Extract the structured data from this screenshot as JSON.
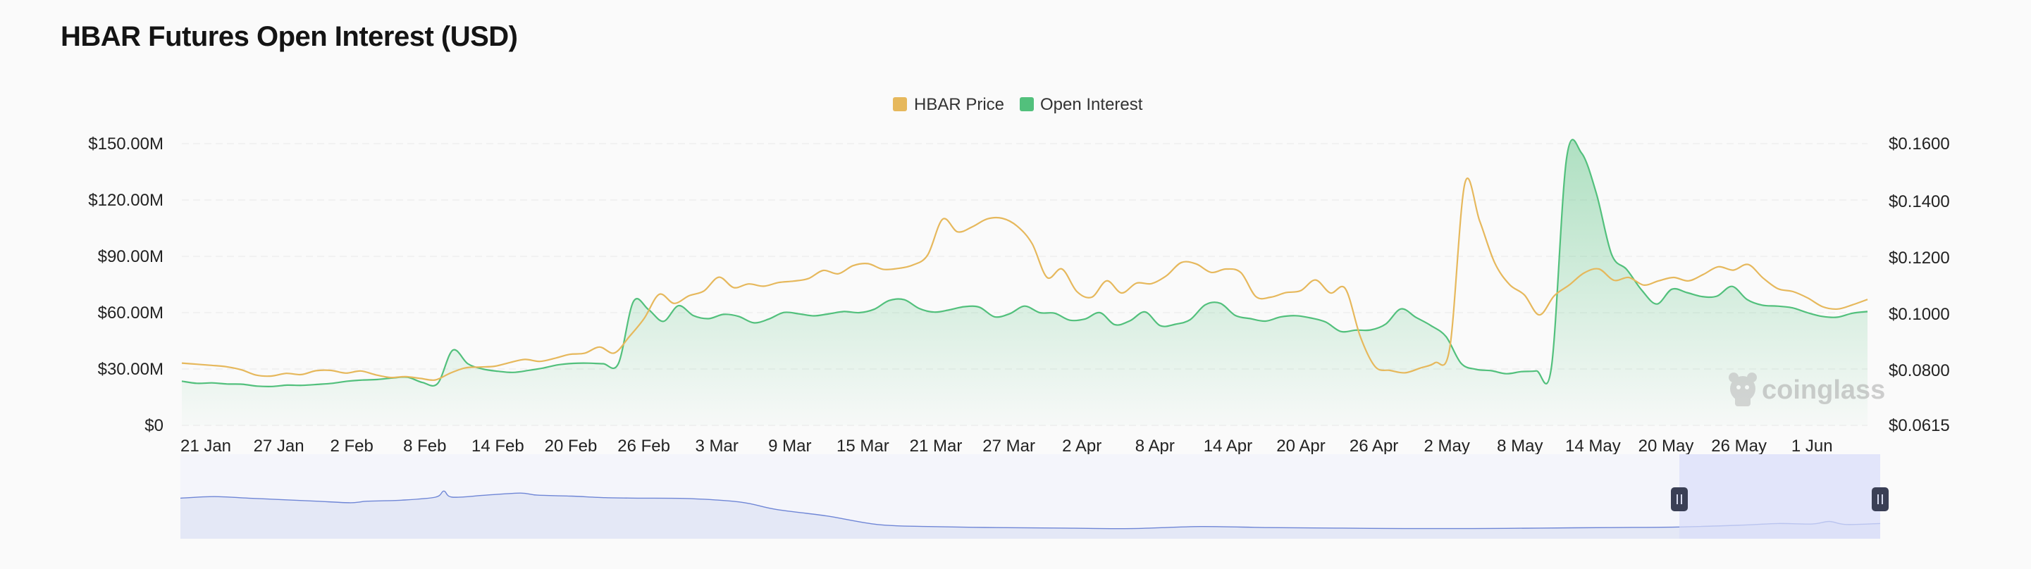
{
  "header": {
    "title": "HBAR Futures Open Interest (USD)"
  },
  "watermark": {
    "text": "coinglass"
  },
  "colors": {
    "price": "#e6b85c",
    "open_interest": "#52c07c",
    "navigator_line": "#6f86d6",
    "navigator_fill": "#e4e8f6",
    "navigator_selection": "#dadefa"
  },
  "chart_data": {
    "type": "line",
    "title": "HBAR Futures Open Interest (USD)",
    "legend": {
      "position": "top-center",
      "entries": [
        "HBAR Price",
        "Open Interest"
      ]
    },
    "x_ticks": [
      "21 Jan",
      "27 Jan",
      "2 Feb",
      "8 Feb",
      "14 Feb",
      "20 Feb",
      "26 Feb",
      "3 Mar",
      "9 Mar",
      "15 Mar",
      "21 Mar",
      "27 Mar",
      "2 Apr",
      "8 Apr",
      "14 Apr",
      "20 Apr",
      "26 Apr",
      "2 May",
      "8 May",
      "14 May",
      "20 May",
      "26 May",
      "1 Jun"
    ],
    "y_left": {
      "ticks": [
        "$0",
        "$30.00M",
        "$60.00M",
        "$90.00M",
        "$120.00M",
        "$150.00M"
      ],
      "range": [
        0,
        150
      ]
    },
    "y_right": {
      "ticks": [
        "$0.0615",
        "$0.0800",
        "$0.1000",
        "$0.1200",
        "$0.1400",
        "$0.1600"
      ],
      "range": [
        0.0615,
        0.16
      ]
    },
    "grid": true,
    "series": [
      {
        "name": "HBAR Price",
        "axis": "right",
        "points": [
          [
            0,
            0.0826
          ],
          [
            1,
            0.0822
          ],
          [
            2,
            0.0818
          ],
          [
            3,
            0.0813
          ],
          [
            4,
            0.0802
          ],
          [
            5,
            0.0784
          ],
          [
            6,
            0.0781
          ],
          [
            7,
            0.079
          ],
          [
            8,
            0.0786
          ],
          [
            9,
            0.0799
          ],
          [
            10,
            0.08
          ],
          [
            11,
            0.0791
          ],
          [
            12,
            0.0798
          ],
          [
            13,
            0.0785
          ],
          [
            14,
            0.0776
          ],
          [
            15,
            0.0779
          ],
          [
            16,
            0.0773
          ],
          [
            17,
            0.0768
          ],
          [
            18,
            0.0791
          ],
          [
            19,
            0.0809
          ],
          [
            20,
            0.0812
          ],
          [
            21,
            0.0815
          ],
          [
            22,
            0.0828
          ],
          [
            23,
            0.0839
          ],
          [
            24,
            0.0832
          ],
          [
            25,
            0.0843
          ],
          [
            26,
            0.0857
          ],
          [
            27,
            0.0861
          ],
          [
            28,
            0.0883
          ],
          [
            29,
            0.0862
          ],
          [
            30,
            0.092
          ],
          [
            31,
            0.0985
          ],
          [
            32,
            0.107
          ],
          [
            33,
            0.1038
          ],
          [
            34,
            0.1065
          ],
          [
            35,
            0.1082
          ],
          [
            36,
            0.1131
          ],
          [
            37,
            0.1094
          ],
          [
            38,
            0.1107
          ],
          [
            39,
            0.1099
          ],
          [
            40,
            0.1112
          ],
          [
            41,
            0.1117
          ],
          [
            42,
            0.1126
          ],
          [
            43,
            0.1155
          ],
          [
            44,
            0.1143
          ],
          [
            45,
            0.1172
          ],
          [
            46,
            0.1179
          ],
          [
            47,
            0.1159
          ],
          [
            48,
            0.1162
          ],
          [
            49,
            0.1174
          ],
          [
            50,
            0.121
          ],
          [
            51,
            0.1337
          ],
          [
            52,
            0.1292
          ],
          [
            53,
            0.131
          ],
          [
            54,
            0.1338
          ],
          [
            55,
            0.134
          ],
          [
            56,
            0.1312
          ],
          [
            57,
            0.125
          ],
          [
            58,
            0.113
          ],
          [
            59,
            0.116
          ],
          [
            60,
            0.108
          ],
          [
            61,
            0.106
          ],
          [
            62,
            0.1118
          ],
          [
            63,
            0.1075
          ],
          [
            64,
            0.111
          ],
          [
            65,
            0.1108
          ],
          [
            66,
            0.1136
          ],
          [
            67,
            0.1183
          ],
          [
            68,
            0.1178
          ],
          [
            69,
            0.1148
          ],
          [
            70,
            0.116
          ],
          [
            71,
            0.1147
          ],
          [
            72,
            0.1062
          ],
          [
            73,
            0.106
          ],
          [
            74,
            0.1076
          ],
          [
            75,
            0.1083
          ],
          [
            76,
            0.1121
          ],
          [
            77,
            0.1075
          ],
          [
            78,
            0.109
          ],
          [
            79,
            0.092
          ],
          [
            80,
            0.0813
          ],
          [
            81,
            0.08
          ],
          [
            82,
            0.0792
          ],
          [
            83,
            0.0808
          ],
          [
            84,
            0.0827
          ],
          [
            85,
            0.0881
          ],
          [
            86,
            0.1461
          ],
          [
            87,
            0.1331
          ],
          [
            88,
            0.1183
          ],
          [
            89,
            0.1105
          ],
          [
            90,
            0.1068
          ],
          [
            91,
            0.0997
          ],
          [
            92,
            0.1065
          ],
          [
            93,
            0.1103
          ],
          [
            94,
            0.1146
          ],
          [
            95,
            0.116
          ],
          [
            96,
            0.112
          ],
          [
            97,
            0.113
          ],
          [
            98,
            0.1103
          ],
          [
            99,
            0.1118
          ],
          [
            100,
            0.113
          ],
          [
            101,
            0.1118
          ],
          [
            102,
            0.1141
          ],
          [
            103,
            0.1168
          ],
          [
            104,
            0.1156
          ],
          [
            105,
            0.1176
          ],
          [
            106,
            0.1128
          ],
          [
            107,
            0.109
          ],
          [
            108,
            0.108
          ],
          [
            109,
            0.1057
          ],
          [
            110,
            0.1026
          ],
          [
            111,
            0.1018
          ],
          [
            112,
            0.1033
          ],
          [
            113,
            0.1052
          ]
        ]
      },
      {
        "name": "Open Interest",
        "axis": "left",
        "points": [
          [
            0,
            23.5
          ],
          [
            1,
            22.4
          ],
          [
            2,
            22.6
          ],
          [
            3,
            22.0
          ],
          [
            4,
            21.9
          ],
          [
            5,
            20.9
          ],
          [
            6,
            20.7
          ],
          [
            7,
            21.4
          ],
          [
            8,
            21.3
          ],
          [
            9,
            21.8
          ],
          [
            10,
            22.4
          ],
          [
            11,
            23.5
          ],
          [
            12,
            24.1
          ],
          [
            13,
            24.4
          ],
          [
            14,
            25.2
          ],
          [
            15,
            25.6
          ],
          [
            16,
            22.8
          ],
          [
            17,
            22.3
          ],
          [
            18,
            40.0
          ],
          [
            19,
            32.8
          ],
          [
            20,
            30.0
          ],
          [
            21,
            28.8
          ],
          [
            22,
            28.2
          ],
          [
            23,
            29.2
          ],
          [
            24,
            30.5
          ],
          [
            25,
            32.2
          ],
          [
            26,
            33.0
          ],
          [
            27,
            33.1
          ],
          [
            28,
            32.8
          ],
          [
            29,
            32.8
          ],
          [
            30,
            65.8
          ],
          [
            31,
            61.7
          ],
          [
            32,
            55.4
          ],
          [
            33,
            63.7
          ],
          [
            34,
            58.4
          ],
          [
            35,
            56.8
          ],
          [
            36,
            59.1
          ],
          [
            37,
            58.0
          ],
          [
            38,
            54.6
          ],
          [
            39,
            56.6
          ],
          [
            40,
            60.1
          ],
          [
            41,
            59.4
          ],
          [
            42,
            58.3
          ],
          [
            43,
            59.4
          ],
          [
            44,
            60.6
          ],
          [
            45,
            60.0
          ],
          [
            46,
            61.8
          ],
          [
            47,
            66.5
          ],
          [
            48,
            66.9
          ],
          [
            49,
            62.2
          ],
          [
            50,
            60.3
          ],
          [
            51,
            61.5
          ],
          [
            52,
            63.2
          ],
          [
            53,
            62.9
          ],
          [
            54,
            57.8
          ],
          [
            55,
            59.4
          ],
          [
            56,
            63.5
          ],
          [
            57,
            60.0
          ],
          [
            58,
            59.7
          ],
          [
            59,
            56.0
          ],
          [
            60,
            56.6
          ],
          [
            61,
            60.0
          ],
          [
            62,
            53.6
          ],
          [
            63,
            55.7
          ],
          [
            64,
            60.4
          ],
          [
            65,
            53.1
          ],
          [
            66,
            53.8
          ],
          [
            67,
            56.3
          ],
          [
            68,
            64.2
          ],
          [
            69,
            65.0
          ],
          [
            70,
            58.5
          ],
          [
            71,
            56.8
          ],
          [
            72,
            55.5
          ],
          [
            73,
            57.7
          ],
          [
            74,
            58.4
          ],
          [
            75,
            57.2
          ],
          [
            76,
            55.0
          ],
          [
            77,
            50.0
          ],
          [
            78,
            50.7
          ],
          [
            79,
            50.8
          ],
          [
            80,
            54.0
          ],
          [
            81,
            62.0
          ],
          [
            82,
            57.5
          ],
          [
            83,
            53.1
          ],
          [
            84,
            47.2
          ],
          [
            85,
            33.0
          ],
          [
            86,
            29.8
          ],
          [
            87,
            29.1
          ],
          [
            88,
            27.5
          ],
          [
            89,
            28.6
          ],
          [
            90,
            29.0
          ],
          [
            91,
            31.0
          ],
          [
            92,
            142.0
          ],
          [
            93,
            145.0
          ],
          [
            94,
            123.0
          ],
          [
            95,
            91.0
          ],
          [
            96,
            83.0
          ],
          [
            97,
            72.0
          ],
          [
            98,
            64.6
          ],
          [
            99,
            72.5
          ],
          [
            100,
            70.7
          ],
          [
            101,
            68.6
          ],
          [
            102,
            68.8
          ],
          [
            103,
            74.0
          ],
          [
            104,
            67.0
          ],
          [
            105,
            64.0
          ],
          [
            106,
            63.5
          ],
          [
            107,
            62.6
          ],
          [
            108,
            60.0
          ],
          [
            109,
            58.0
          ],
          [
            110,
            57.6
          ],
          [
            111,
            59.7
          ],
          [
            112,
            60.6
          ]
        ]
      }
    ]
  }
}
